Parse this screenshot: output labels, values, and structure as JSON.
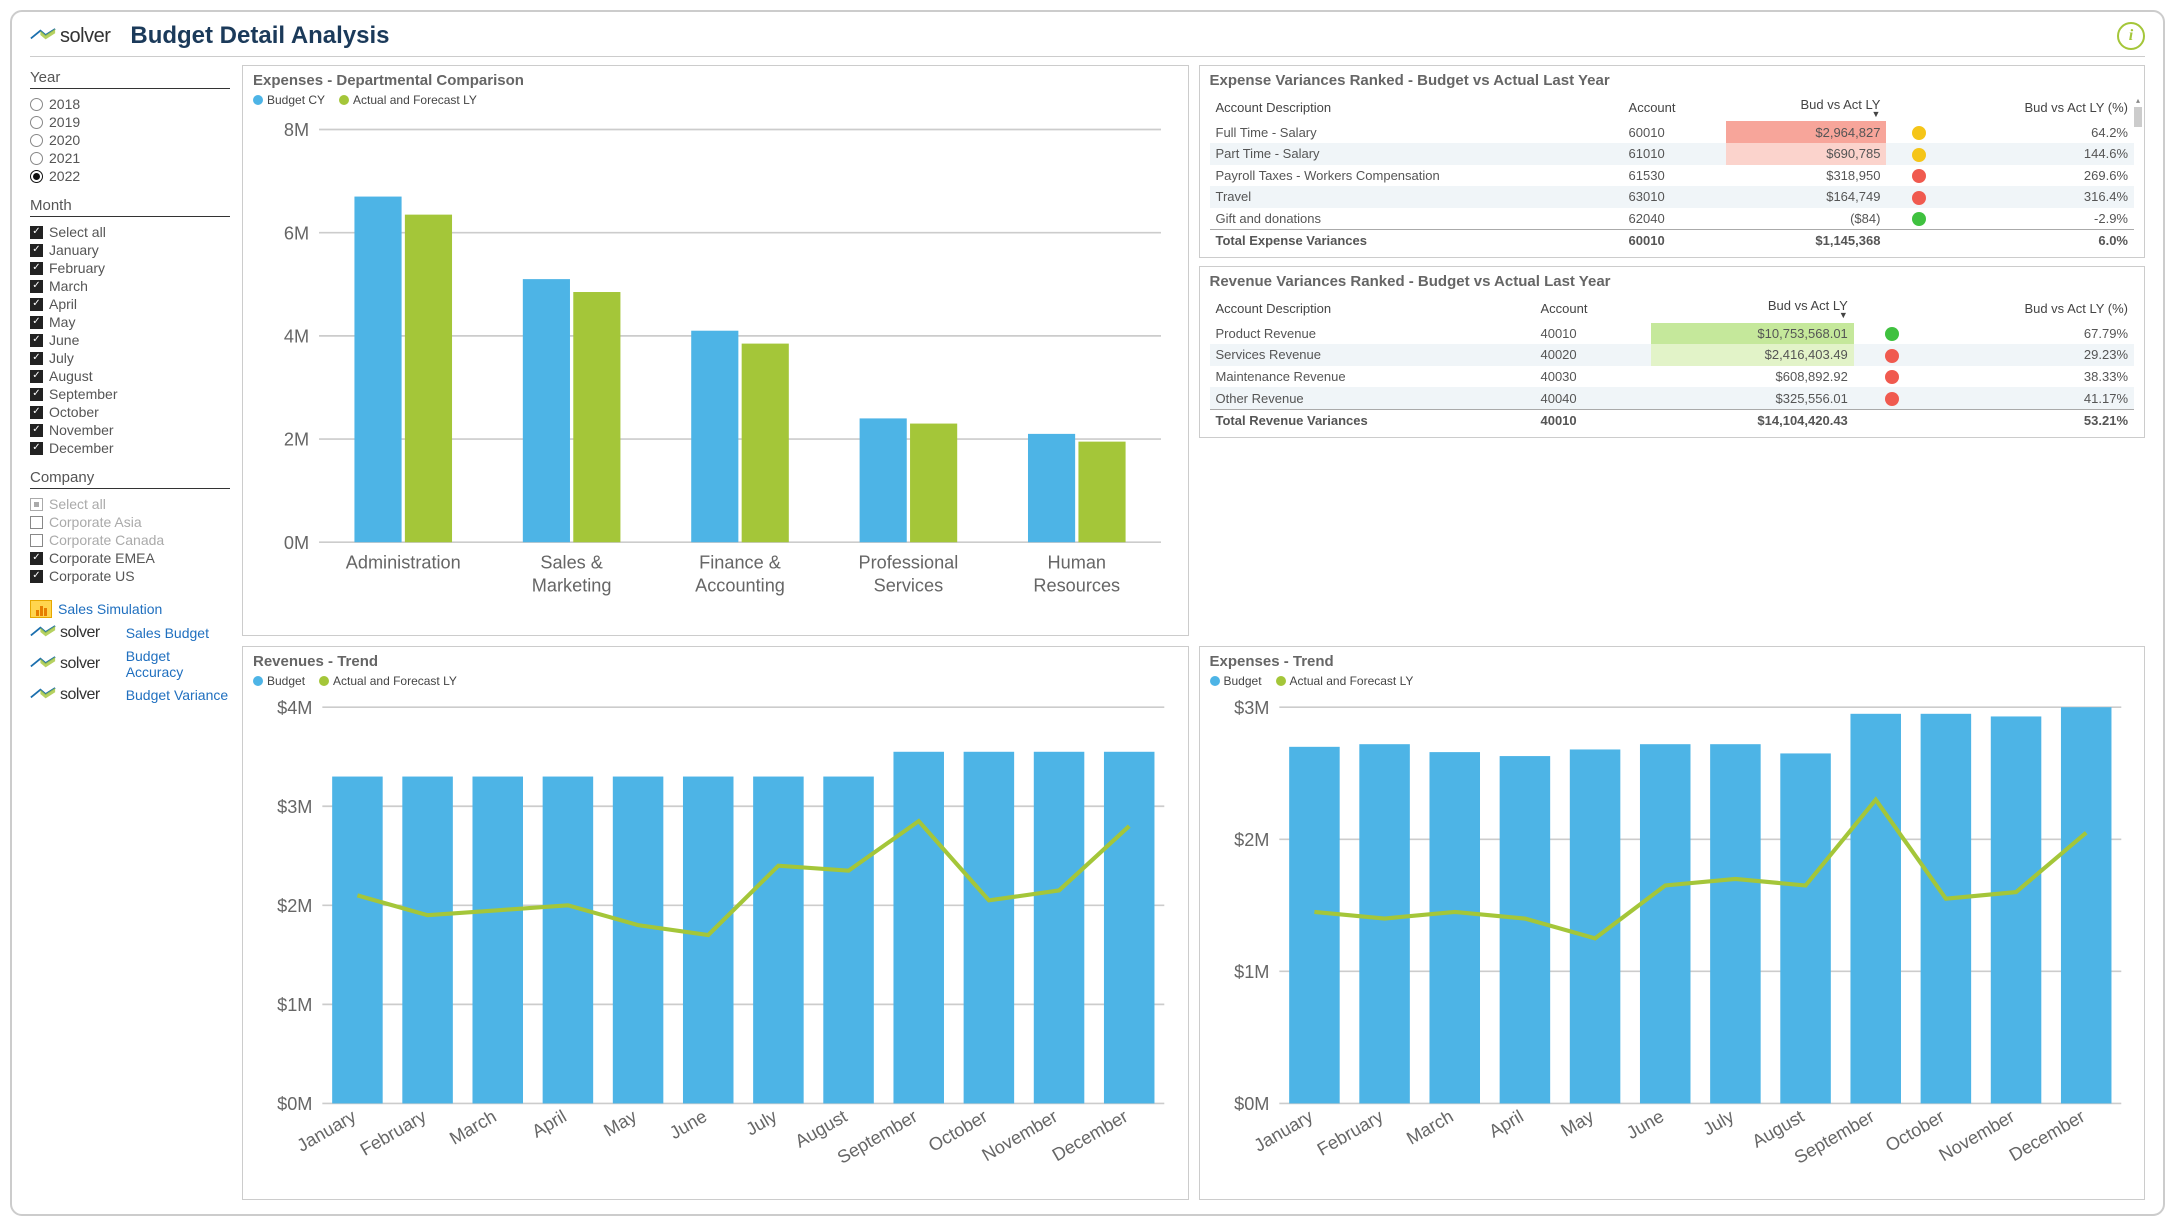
{
  "header": {
    "logo_text": "solver",
    "title": "Budget Detail Analysis",
    "info_glyph": "i"
  },
  "slicers": {
    "year": {
      "title": "Year",
      "options": [
        "2018",
        "2019",
        "2020",
        "2021",
        "2022"
      ],
      "selected": "2022"
    },
    "month": {
      "title": "Month",
      "options": [
        "Select all",
        "January",
        "February",
        "March",
        "April",
        "May",
        "June",
        "July",
        "August",
        "September",
        "October",
        "November",
        "December"
      ],
      "checked": [
        true,
        true,
        true,
        true,
        true,
        true,
        true,
        true,
        true,
        true,
        true,
        true,
        true
      ]
    },
    "company": {
      "title": "Company",
      "options": [
        "Select all",
        "Corporate Asia",
        "Corporate Canada",
        "Corporate EMEA",
        "Corporate US"
      ],
      "states": [
        "partial",
        "unchecked",
        "unchecked",
        "checked",
        "checked"
      ]
    }
  },
  "report_links": [
    {
      "icon": "pbi",
      "label": "Sales Simulation"
    },
    {
      "icon": "solver",
      "label": "Sales Budget"
    },
    {
      "icon": "solver",
      "label": "Budget Accuracy"
    },
    {
      "icon": "solver",
      "label": "Budget Variance"
    }
  ],
  "charts": {
    "dept": {
      "title": "Expenses - Departmental Comparison",
      "legend": [
        {
          "label": "Budget CY",
          "color": "#4db4e6"
        },
        {
          "label": "Actual and Forecast LY",
          "color": "#a4c639"
        }
      ],
      "y": {
        "min": 0,
        "max": 8,
        "step": 2,
        "suffix": "M"
      },
      "categories": [
        "Administration",
        "Sales & Marketing",
        "Finance & Accounting",
        "Professional Services",
        "Human Resources"
      ],
      "series": {
        "cy": [
          6.7,
          5.1,
          4.1,
          2.4,
          2.1
        ],
        "ly": [
          6.35,
          4.85,
          3.85,
          2.3,
          1.95
        ]
      },
      "colors": {
        "cy": "#4db4e6",
        "ly": "#a4c639"
      },
      "bg": "#ffffff",
      "grid": "#cccccc"
    },
    "rev_trend": {
      "title": "Revenues - Trend",
      "legend": [
        {
          "label": "Budget",
          "color": "#4db4e6"
        },
        {
          "label": "Actual and Forecast LY",
          "color": "#a4c639"
        }
      ],
      "y": {
        "min": 0,
        "max": 4,
        "step": 1,
        "prefix": "$",
        "suffix": "M"
      },
      "months": [
        "January",
        "February",
        "March",
        "April",
        "May",
        "June",
        "July",
        "August",
        "September",
        "October",
        "November",
        "December"
      ],
      "bars": [
        3.3,
        3.3,
        3.3,
        3.3,
        3.3,
        3.3,
        3.3,
        3.3,
        3.55,
        3.55,
        3.55,
        3.55
      ],
      "line": [
        2.1,
        1.9,
        1.95,
        2.0,
        1.8,
        1.7,
        2.4,
        2.35,
        2.85,
        2.05,
        2.15,
        2.8
      ],
      "colors": {
        "bar": "#4db4e6",
        "line": "#a4c639"
      }
    },
    "exp_trend": {
      "title": "Expenses - Trend",
      "legend": [
        {
          "label": "Budget",
          "color": "#4db4e6"
        },
        {
          "label": "Actual and Forecast LY",
          "color": "#a4c639"
        }
      ],
      "y": {
        "min": 0,
        "max": 3,
        "step": 1,
        "prefix": "$",
        "suffix": "M"
      },
      "months": [
        "January",
        "February",
        "March",
        "April",
        "May",
        "June",
        "July",
        "August",
        "September",
        "October",
        "November",
        "December"
      ],
      "bars": [
        2.7,
        2.72,
        2.66,
        2.63,
        2.68,
        2.72,
        2.72,
        2.65,
        2.95,
        2.95,
        2.93,
        3.0
      ],
      "line": [
        1.45,
        1.4,
        1.45,
        1.4,
        1.25,
        1.65,
        1.7,
        1.65,
        2.3,
        1.55,
        1.6,
        2.05
      ],
      "colors": {
        "bar": "#4db4e6",
        "line": "#a4c639"
      }
    }
  },
  "tables": {
    "expense_var": {
      "title": "Expense Variances Ranked - Budget vs Actual Last Year",
      "columns": [
        "Account Description",
        "Account",
        "Bud vs Act LY",
        "",
        "Bud vs Act LY (%)"
      ],
      "sort_col": 2,
      "rows": [
        {
          "desc": "Full Time - Salary",
          "acct": "60010",
          "val": "$2,964,827",
          "hl": "hl-red",
          "dot": "yellow",
          "pct": "64.2%"
        },
        {
          "desc": "Part Time - Salary",
          "acct": "61010",
          "val": "$690,785",
          "hl": "hl-ltred",
          "dot": "yellow",
          "pct": "144.6%"
        },
        {
          "desc": "Payroll Taxes - Workers Compensation",
          "acct": "61530",
          "val": "$318,950",
          "hl": "",
          "dot": "red",
          "pct": "269.6%"
        },
        {
          "desc": "Travel",
          "acct": "63010",
          "val": "$164,749",
          "hl": "",
          "dot": "red",
          "pct": "316.4%"
        },
        {
          "desc": "Gift and donations",
          "acct": "62040",
          "val": "($84)",
          "hl": "",
          "dot": "green",
          "pct": "-2.9%"
        }
      ],
      "total": {
        "desc": "Total Expense Variances",
        "acct": "60010",
        "val": "$1,145,368",
        "pct": "6.0%"
      }
    },
    "revenue_var": {
      "title": "Revenue Variances Ranked - Budget vs Actual Last Year",
      "columns": [
        "Account Description",
        "Account",
        "Bud vs Act LY",
        "",
        "Bud vs Act LY (%)"
      ],
      "sort_col": 2,
      "rows": [
        {
          "desc": "Product Revenue",
          "acct": "40010",
          "val": "$10,753,568.01",
          "hl": "hl-green",
          "dot": "green",
          "pct": "67.79%"
        },
        {
          "desc": "Services Revenue",
          "acct": "40020",
          "val": "$2,416,403.49",
          "hl": "hl-ltgreen",
          "dot": "red",
          "pct": "29.23%"
        },
        {
          "desc": "Maintenance Revenue",
          "acct": "40030",
          "val": "$608,892.92",
          "hl": "",
          "dot": "red",
          "pct": "38.33%"
        },
        {
          "desc": "Other Revenue",
          "acct": "40040",
          "val": "$325,556.01",
          "hl": "",
          "dot": "red",
          "pct": "41.17%"
        }
      ],
      "total": {
        "desc": "Total Revenue Variances",
        "acct": "40010",
        "val": "$14,104,420.43",
        "pct": "53.21%"
      }
    }
  }
}
